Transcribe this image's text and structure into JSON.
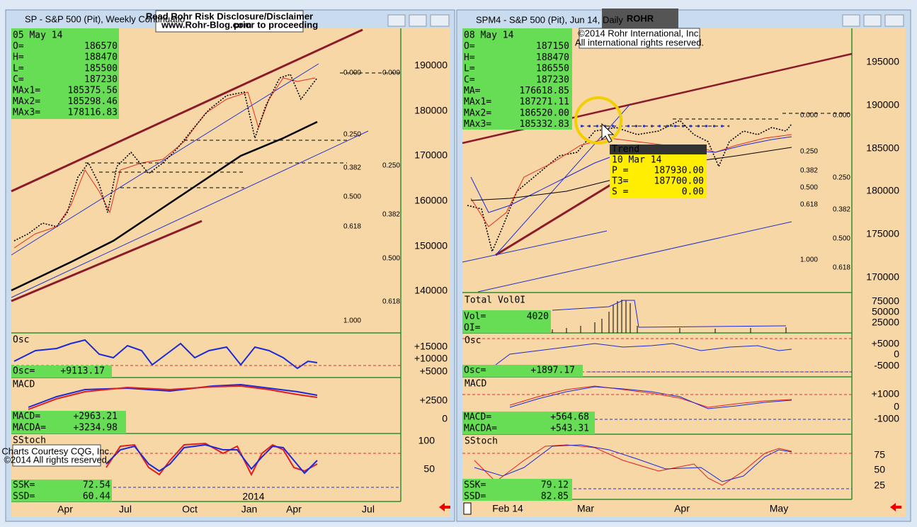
{
  "overlays": {
    "disclaimer": {
      "line1": "Read Rohr Risk Disclosure/Disclaimer",
      "link": "www.Rohr-Blog.com",
      "rest": "prior to proceeding"
    },
    "logo": "ROHR",
    "copyright": [
      "©2014  Rohr International, Inc.",
      "All international rights reserved."
    ],
    "courtesy": [
      "Charts Courtesy CQG, Inc.",
      "©2014 All rights reserved."
    ]
  },
  "left": {
    "title": "SP - S&P 500 (Pit), Weekly Continuatio",
    "info": {
      "date": "05 May 14",
      "rows": [
        [
          "O=",
          "186570"
        ],
        [
          "H=",
          "188470"
        ],
        [
          "L=",
          "185500"
        ],
        [
          "C=",
          "187230"
        ],
        [
          "MAx1=",
          "185375.56"
        ],
        [
          "MAx2=",
          "185298.46"
        ],
        [
          "MAx3=",
          "178116.83"
        ]
      ]
    },
    "price_axis": [
      "190000",
      "180000",
      "170000",
      "160000",
      "150000",
      "140000"
    ],
    "fib_set1": [
      "0.000",
      "0.250",
      "0.382",
      "0.500",
      "0.618",
      "1.000"
    ],
    "fib_set2": [
      "0.000",
      "0.250",
      "0.382",
      "0.500",
      "0.618"
    ],
    "osc": {
      "label": "Osc",
      "rows": [
        [
          "Osc=",
          "+9113.17"
        ]
      ],
      "axis": [
        "+15000",
        "+10000",
        "+5000"
      ]
    },
    "macd": {
      "label": "MACD",
      "rows": [
        [
          "MACD=",
          "+2963.21"
        ],
        [
          "MACDA=",
          "+3234.98"
        ]
      ],
      "axis": [
        "+2500",
        "0"
      ]
    },
    "sstoch": {
      "label": "SStoch",
      "rows": [
        [
          "SSK=",
          "72.54"
        ],
        [
          "SSD=",
          "60.44"
        ]
      ],
      "axis": [
        "100",
        "50"
      ]
    },
    "x_axis": [
      "Apr",
      "Jul",
      "Oct",
      "Jan",
      "Apr",
      "Jul"
    ],
    "year": "2014"
  },
  "right": {
    "title": "SPM4 - S&P 500 (Pit), Jun 14, Daily",
    "info": {
      "date": "08 May 14",
      "rows": [
        [
          "O=",
          "187150"
        ],
        [
          "H=",
          "188470"
        ],
        [
          "L=",
          "186550"
        ],
        [
          "C=",
          "187230"
        ],
        [
          "MA=",
          "176618.85"
        ],
        [
          "MAx1=",
          "187271.11"
        ],
        [
          "MAx2=",
          "186520.00"
        ],
        [
          "MAx3=",
          "185332.83"
        ]
      ]
    },
    "price_axis": [
      "195000",
      "190000",
      "185000",
      "180000",
      "175000",
      "170000"
    ],
    "fib_set1": [
      "0.000",
      "0.250",
      "0.382",
      "0.500",
      "0.618",
      "1.000"
    ],
    "fib_set2": [
      "0.000",
      "0.250",
      "0.382",
      "0.500",
      "0.618"
    ],
    "tooltip": {
      "header": "Trend",
      "date": "10 Mar 14",
      "rows": [
        [
          "P =",
          "187930.00"
        ],
        [
          "T3=",
          "187700.00"
        ],
        [
          "S =",
          "0.00"
        ]
      ]
    },
    "volume": {
      "label": "Total Vol0I",
      "rows": [
        [
          "Vol=",
          "4020"
        ],
        [
          "OI=",
          ""
        ]
      ],
      "axis": [
        "75000",
        "50000",
        "25000"
      ]
    },
    "osc": {
      "label": "Osc",
      "rows": [
        [
          "Osc=",
          "+1897.17"
        ]
      ],
      "axis": [
        "+5000",
        "0",
        "-5000"
      ]
    },
    "macd": {
      "label": "MACD",
      "rows": [
        [
          "MACD=",
          "+564.68"
        ],
        [
          "MACDA=",
          "+543.31"
        ]
      ],
      "axis": [
        "+1000",
        "0",
        "-1000"
      ]
    },
    "sstoch": {
      "label": "SStoch",
      "rows": [
        [
          "SSK=",
          "79.12"
        ],
        [
          "SSD=",
          "82.85"
        ]
      ],
      "axis": [
        "75",
        "50",
        "25"
      ]
    },
    "x_axis": [
      "Feb 14",
      "Mar",
      "Apr",
      "May"
    ]
  }
}
